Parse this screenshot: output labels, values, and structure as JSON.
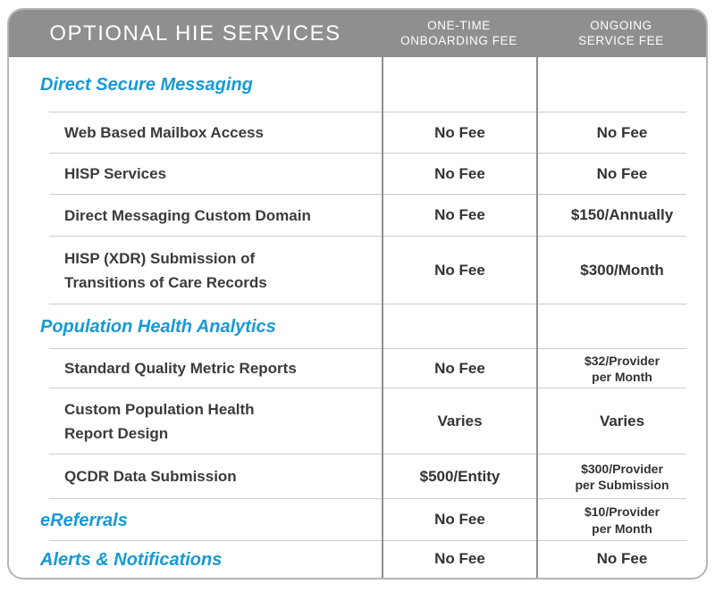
{
  "chart_data": {
    "type": "table",
    "title": "OPTIONAL HIE SERVICES",
    "column_headers": [
      "ONE-TIME\nONBOARDING FEE",
      "ONGOING\nSERVICE FEE"
    ],
    "rows": [
      {
        "kind": "section",
        "service": "Direct Secure Messaging",
        "onboarding_fee": "",
        "ongoing_fee": ""
      },
      {
        "kind": "item",
        "service": "Web Based Mailbox Access",
        "onboarding_fee": "No Fee",
        "ongoing_fee": "No Fee"
      },
      {
        "kind": "item",
        "service": "HISP Services",
        "onboarding_fee": "No Fee",
        "ongoing_fee": "No Fee"
      },
      {
        "kind": "item",
        "service": "Direct Messaging Custom Domain",
        "onboarding_fee": "No Fee",
        "ongoing_fee": "$150/Annually"
      },
      {
        "kind": "item",
        "service": "HISP (XDR) Submission of\nTransitions of Care Records",
        "onboarding_fee": "No Fee",
        "ongoing_fee": "$300/Month"
      },
      {
        "kind": "section",
        "service": "Population Health Analytics",
        "onboarding_fee": "",
        "ongoing_fee": ""
      },
      {
        "kind": "item",
        "service": "Standard Quality Metric Reports",
        "onboarding_fee": "No Fee",
        "ongoing_fee": "$32/Provider\nper Month"
      },
      {
        "kind": "item",
        "service": "Custom Population Health\nReport Design",
        "onboarding_fee": "Varies",
        "ongoing_fee": "Varies"
      },
      {
        "kind": "item",
        "service": "QCDR Data Submission",
        "onboarding_fee": "$500/Entity",
        "ongoing_fee": "$300/Provider\nper Submission"
      },
      {
        "kind": "section",
        "service": "eReferrals",
        "onboarding_fee": "No Fee",
        "ongoing_fee": "$10/Provider\nper Month"
      },
      {
        "kind": "section",
        "service": "Alerts & Notifications",
        "onboarding_fee": "No Fee",
        "ongoing_fee": "No Fee"
      }
    ]
  },
  "colors": {
    "header_background": "#8f8f8f",
    "header_text": "#ffffff",
    "section_heading_blue": "#1799d6",
    "body_text": "#3b3b3b",
    "column_divider": "#8f8f8f",
    "row_divider": "#cccccc",
    "card_border": "#b5b5b5"
  }
}
